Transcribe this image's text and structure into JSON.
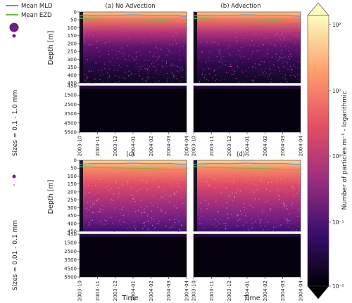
{
  "legend": {
    "mld_label": "Mean MLD",
    "ezd_label": "Mean EZD",
    "mld_color": "#5b9bd5",
    "ezd_color": "#6abf3a"
  },
  "row_labels": [
    "Sizes = 0.1 - 1.0 mm",
    "Sizes = 0.01 - 0.1 mm"
  ],
  "panel_titles": [
    "(a) No Advection",
    "(b) Advection",
    "(c)",
    "(d)"
  ],
  "ylabel": "Depth [m]",
  "xlabel": "Time",
  "colorbar": {
    "label": "Number of particles m⁻¹ - logarithmic",
    "ticks": [
      "10²",
      "10¹",
      "10⁰",
      "10⁻¹",
      "10⁻²"
    ],
    "scale": "log",
    "range": [
      0.01,
      100
    ]
  },
  "chart_data": {
    "type": "heatmap",
    "title": "",
    "x_ticks": [
      "2003-10",
      "2003-11",
      "2003-12",
      "2004-01",
      "2004-02",
      "2004-03",
      "2004-04"
    ],
    "depth_upper_ticks": [
      "0",
      "50",
      "100",
      "150",
      "200",
      "250",
      "300",
      "350",
      "400",
      "450"
    ],
    "depth_lower_ticks": [
      "450",
      "1500",
      "2500",
      "3500",
      "4500",
      "5500"
    ],
    "upper_ylim": [
      450,
      0
    ],
    "lower_ylim": [
      5500,
      450
    ],
    "panels": [
      {
        "id": "a",
        "title": "(a) No Advection",
        "size_class": "0.1 - 1.0 mm"
      },
      {
        "id": "b",
        "title": "(b) Advection",
        "size_class": "0.1 - 1.0 mm"
      },
      {
        "id": "c",
        "title": "(c)",
        "size_class": "0.01 - 0.1 mm"
      },
      {
        "id": "d",
        "title": "(d)",
        "size_class": "0.01 - 0.1 mm"
      }
    ],
    "series": [
      {
        "name": "Mean MLD",
        "x": [
          "2003-10",
          "2003-11",
          "2003-12",
          "2004-01",
          "2004-02",
          "2004-03",
          "2004-04"
        ],
        "y": [
          25,
          20,
          22,
          18,
          22,
          20,
          28
        ]
      },
      {
        "name": "Mean EZD",
        "x": [
          "2003-10",
          "2003-11",
          "2003-12",
          "2004-01",
          "2004-02",
          "2004-03",
          "2004-04"
        ],
        "y": [
          40,
          45,
          48,
          50,
          52,
          58,
          62
        ]
      }
    ]
  }
}
